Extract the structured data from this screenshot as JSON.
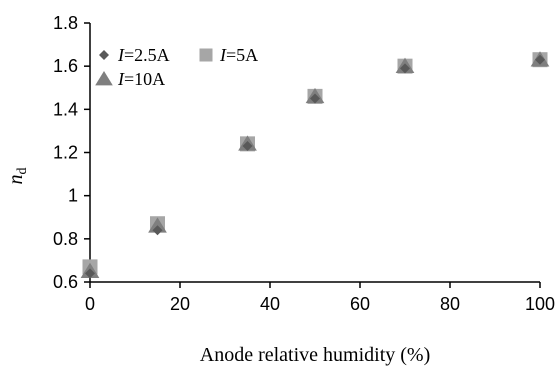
{
  "chart_data": {
    "type": "scatter",
    "xlabel": "Anode relative humidity (%)",
    "ylabel_symbol": "n",
    "ylabel_subscript": "d",
    "xlim": [
      0,
      100
    ],
    "ylim": [
      0.6,
      1.8
    ],
    "xticks": [
      0,
      20,
      40,
      60,
      80,
      100
    ],
    "yticks": [
      0.6,
      0.8,
      1,
      1.2,
      1.4,
      1.6,
      1.8
    ],
    "xtick_labels": [
      "0",
      "20",
      "40",
      "60",
      "80",
      "100"
    ],
    "ytick_labels": [
      "0.6",
      "0.8",
      "1",
      "1.2",
      "1.4",
      "1.6",
      "1.8"
    ],
    "grid": false,
    "legend_position": "top-left",
    "series": [
      {
        "name": "I=2.5A",
        "legend_italic": "I",
        "legend_rest": "=2.5A",
        "marker": "diamond",
        "color": "#595959",
        "x": [
          0,
          15,
          35,
          50,
          70,
          100
        ],
        "y": [
          0.64,
          0.84,
          1.23,
          1.45,
          1.59,
          1.63
        ]
      },
      {
        "name": "I=5A",
        "legend_italic": "I",
        "legend_rest": "=5A",
        "marker": "square",
        "color": "#a6a6a6",
        "x": [
          0,
          15,
          35,
          50,
          70,
          100
        ],
        "y": [
          0.67,
          0.87,
          1.24,
          1.46,
          1.6,
          1.63
        ]
      },
      {
        "name": "I=10A",
        "legend_italic": "I",
        "legend_rest": "=10A",
        "marker": "triangle",
        "color": "#7f7f7f",
        "x": [
          0,
          15,
          35,
          50,
          70,
          100
        ],
        "y": [
          0.65,
          0.86,
          1.24,
          1.46,
          1.6,
          1.63
        ]
      }
    ]
  }
}
